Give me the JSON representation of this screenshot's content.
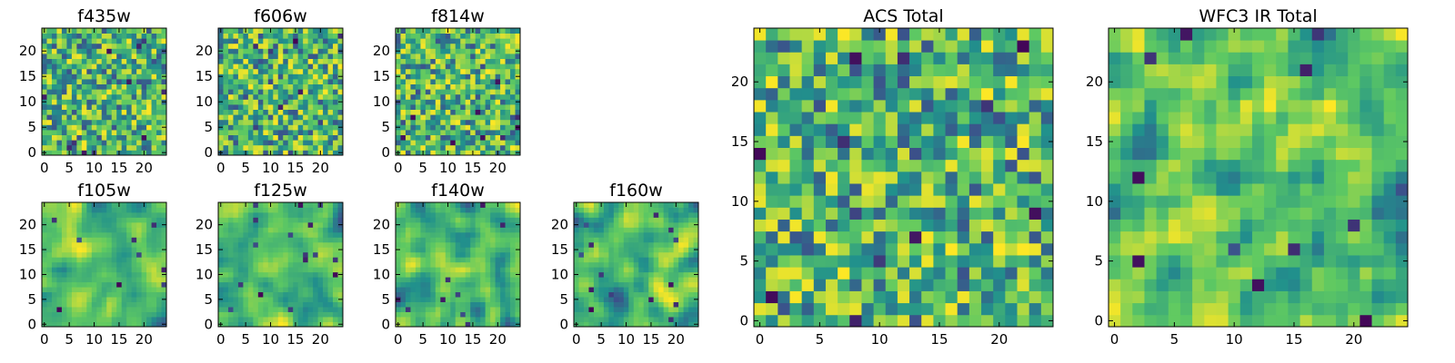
{
  "figure": {
    "background": "#ffffff",
    "colormap": "viridis",
    "colormap_stops": [
      "#440154",
      "#3b528b",
      "#21918c",
      "#5ec962",
      "#fde725"
    ]
  },
  "chart_data": [
    {
      "id": "f435w",
      "type": "heatmap",
      "title": "f435w",
      "grid_size": [
        25,
        25
      ],
      "xlim": [
        -0.5,
        24.5
      ],
      "ylim": [
        -0.5,
        24.5
      ],
      "xticks": [
        0,
        5,
        10,
        15,
        20
      ],
      "yticks": [
        0,
        5,
        10,
        15,
        20
      ],
      "texture": "pixel-noise",
      "seed": 11,
      "smooth": 0
    },
    {
      "id": "f606w",
      "type": "heatmap",
      "title": "f606w",
      "grid_size": [
        25,
        25
      ],
      "xlim": [
        -0.5,
        24.5
      ],
      "ylim": [
        -0.5,
        24.5
      ],
      "xticks": [
        0,
        5,
        10,
        15,
        20
      ],
      "yticks": [
        0,
        5,
        10,
        15,
        20
      ],
      "texture": "pixel-noise",
      "seed": 23,
      "smooth": 0
    },
    {
      "id": "f814w",
      "type": "heatmap",
      "title": "f814w",
      "grid_size": [
        25,
        25
      ],
      "xlim": [
        -0.5,
        24.5
      ],
      "ylim": [
        -0.5,
        24.5
      ],
      "xticks": [
        0,
        5,
        10,
        15,
        20
      ],
      "yticks": [
        0,
        5,
        10,
        15,
        20
      ],
      "texture": "pixel-noise",
      "seed": 37,
      "smooth": 0
    },
    {
      "id": "f105w",
      "type": "heatmap",
      "title": "f105w",
      "grid_size": [
        25,
        25
      ],
      "xlim": [
        -0.5,
        24.5
      ],
      "ylim": [
        -0.5,
        24.5
      ],
      "xticks": [
        0,
        5,
        10,
        15,
        20
      ],
      "yticks": [
        0,
        5,
        10,
        15,
        20
      ],
      "texture": "smooth-noise",
      "seed": 41,
      "smooth": 2
    },
    {
      "id": "f125w",
      "type": "heatmap",
      "title": "f125w",
      "grid_size": [
        25,
        25
      ],
      "xlim": [
        -0.5,
        24.5
      ],
      "ylim": [
        -0.5,
        24.5
      ],
      "xticks": [
        0,
        5,
        10,
        15,
        20
      ],
      "yticks": [
        0,
        5,
        10,
        15,
        20
      ],
      "texture": "smooth-noise",
      "seed": 53,
      "smooth": 2
    },
    {
      "id": "f140w",
      "type": "heatmap",
      "title": "f140w",
      "grid_size": [
        25,
        25
      ],
      "xlim": [
        -0.5,
        24.5
      ],
      "ylim": [
        -0.5,
        24.5
      ],
      "xticks": [
        0,
        5,
        10,
        15,
        20
      ],
      "yticks": [
        0,
        5,
        10,
        15,
        20
      ],
      "texture": "smooth-noise",
      "seed": 67,
      "smooth": 2
    },
    {
      "id": "f160w",
      "type": "heatmap",
      "title": "f160w",
      "grid_size": [
        25,
        25
      ],
      "xlim": [
        -0.5,
        24.5
      ],
      "ylim": [
        -0.5,
        24.5
      ],
      "xticks": [
        0,
        5,
        10,
        15,
        20
      ],
      "yticks": [
        0,
        5,
        10,
        15,
        20
      ],
      "texture": "smooth-noise",
      "seed": 79,
      "smooth": 2
    },
    {
      "id": "acs-total",
      "type": "heatmap",
      "title": "ACS Total",
      "grid_size": [
        25,
        25
      ],
      "xlim": [
        -0.5,
        24.5
      ],
      "ylim": [
        -0.5,
        24.5
      ],
      "xticks": [
        0,
        5,
        10,
        15,
        20
      ],
      "yticks": [
        0,
        5,
        10,
        15,
        20
      ],
      "texture": "pixel-noise",
      "seed": 97,
      "smooth": 0
    },
    {
      "id": "wfc3-ir-total",
      "type": "heatmap",
      "title": "WFC3 IR Total",
      "grid_size": [
        25,
        25
      ],
      "xlim": [
        -0.5,
        24.5
      ],
      "ylim": [
        -0.5,
        24.5
      ],
      "xticks": [
        0,
        5,
        10,
        15,
        20
      ],
      "yticks": [
        0,
        5,
        10,
        15,
        20
      ],
      "texture": "smooth-noise",
      "seed": 113,
      "smooth": 1
    }
  ]
}
